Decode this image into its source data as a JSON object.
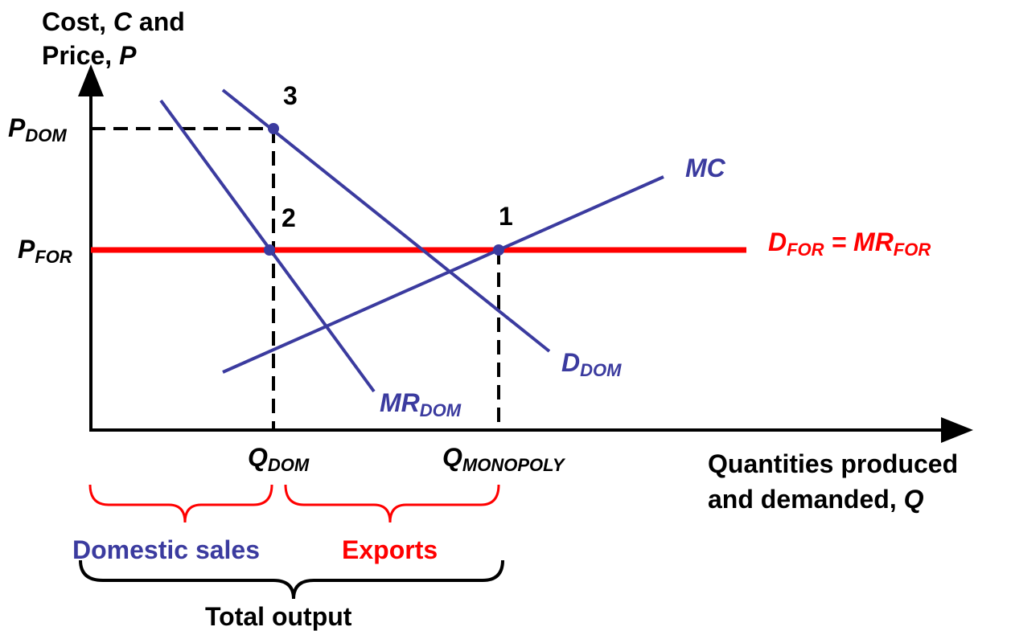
{
  "y_axis_label": {
    "line1": [
      "Cost, ",
      "C",
      " and"
    ],
    "line2": [
      "Price, ",
      "P"
    ]
  },
  "x_axis_label": {
    "line1": "Quantities produced",
    "line2": [
      "and demanded, ",
      "Q"
    ]
  },
  "price_labels": {
    "p_dom": {
      "main": "P",
      "sub": "DOM"
    },
    "p_for": {
      "main": "P",
      "sub": "FOR"
    }
  },
  "quantity_labels": {
    "q_dom": {
      "main": "Q",
      "sub": "DOM"
    },
    "q_monopoly": {
      "main": "Q",
      "sub": "MONOPOLY"
    }
  },
  "curves": {
    "mc": "MC",
    "d_dom": {
      "main": "D",
      "sub": "DOM"
    },
    "mr_dom": {
      "main": "MR",
      "sub": "DOM"
    },
    "d_for": {
      "main": "D",
      "sub": "FOR",
      "eq": " = ",
      "main2": "MR",
      "sub2": "FOR"
    }
  },
  "points": [
    "1",
    "2",
    "3"
  ],
  "braces": {
    "domestic": "Domestic sales",
    "exports": "Exports",
    "total": "Total output"
  }
}
